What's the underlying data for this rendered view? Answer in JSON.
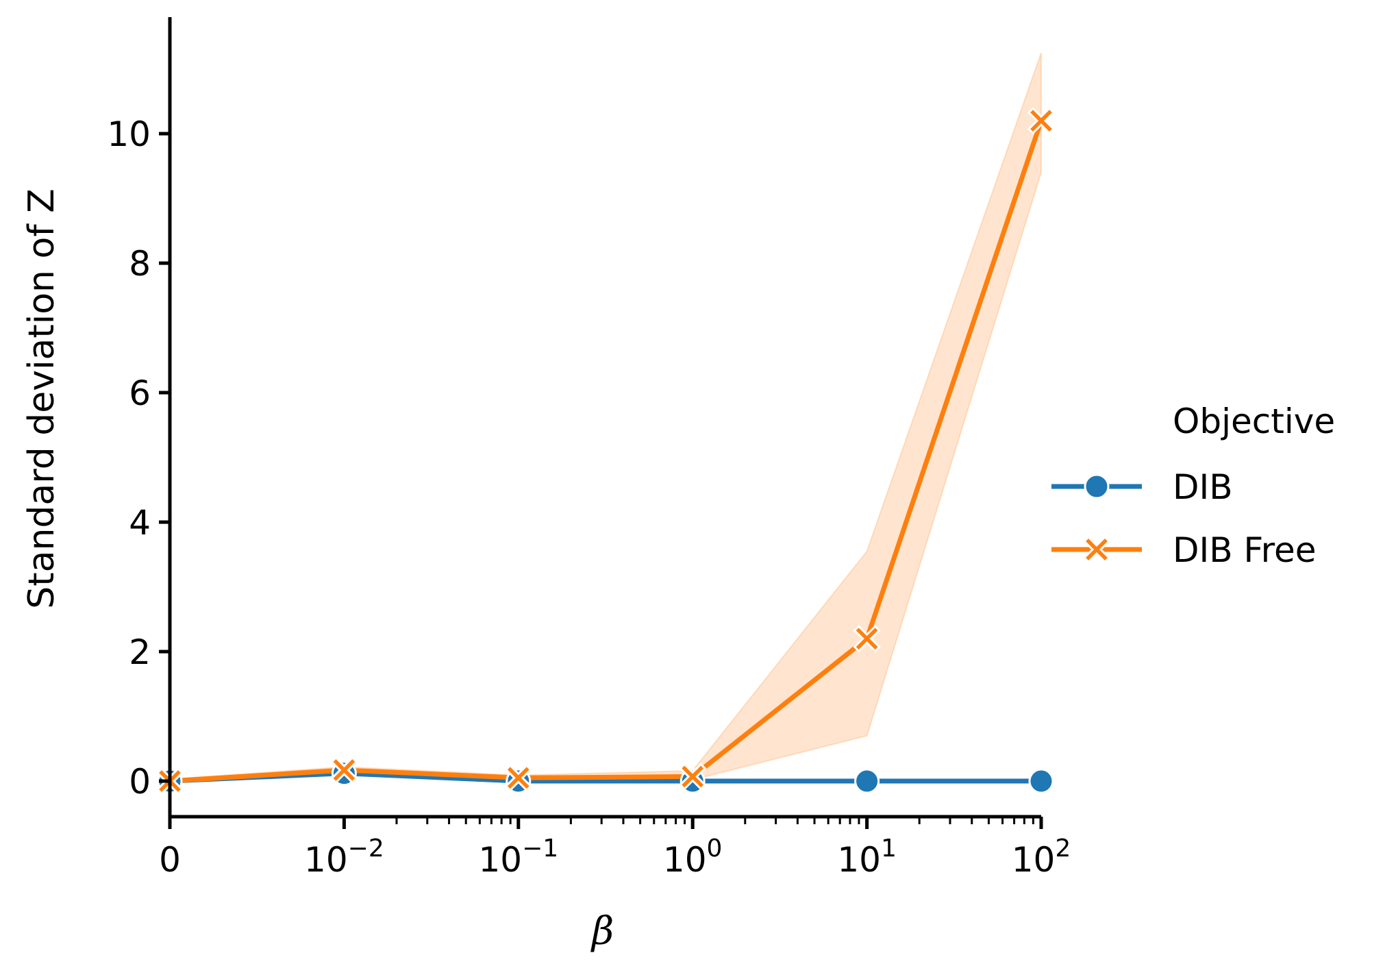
{
  "chart_data": {
    "type": "line",
    "xlabel": "β",
    "ylabel": "Standard deviation of Z",
    "x_scale": "symlog",
    "x_ticks": [
      {
        "value": 0,
        "base": "0",
        "exp": ""
      },
      {
        "value": 0.01,
        "base": "10",
        "exp": "−2"
      },
      {
        "value": 0.1,
        "base": "10",
        "exp": "−1"
      },
      {
        "value": 1,
        "base": "10",
        "exp": "0"
      },
      {
        "value": 10,
        "base": "10",
        "exp": "1"
      },
      {
        "value": 100,
        "base": "10",
        "exp": "2"
      }
    ],
    "y_ticks": [
      "0",
      "2",
      "4",
      "6",
      "8",
      "10"
    ],
    "ylim": [
      -0.55,
      11.8
    ],
    "x": [
      0,
      0.01,
      0.1,
      1,
      10,
      100
    ],
    "series": [
      {
        "name": "DIB",
        "color": "#1f77b4",
        "marker": "circle",
        "values": [
          0.0,
          0.12,
          0.0,
          0.0,
          0.0,
          0.0
        ]
      },
      {
        "name": "DIB Free",
        "color": "#ff7f0e",
        "marker": "x",
        "values": [
          0.0,
          0.17,
          0.05,
          0.07,
          2.2,
          10.2
        ],
        "ci_low": [
          0.0,
          0.12,
          0.02,
          0.02,
          0.7,
          9.4
        ],
        "ci_high": [
          0.03,
          0.22,
          0.09,
          0.16,
          3.55,
          11.25
        ]
      }
    ],
    "legend": {
      "title": "Objective",
      "placement": "right"
    }
  }
}
